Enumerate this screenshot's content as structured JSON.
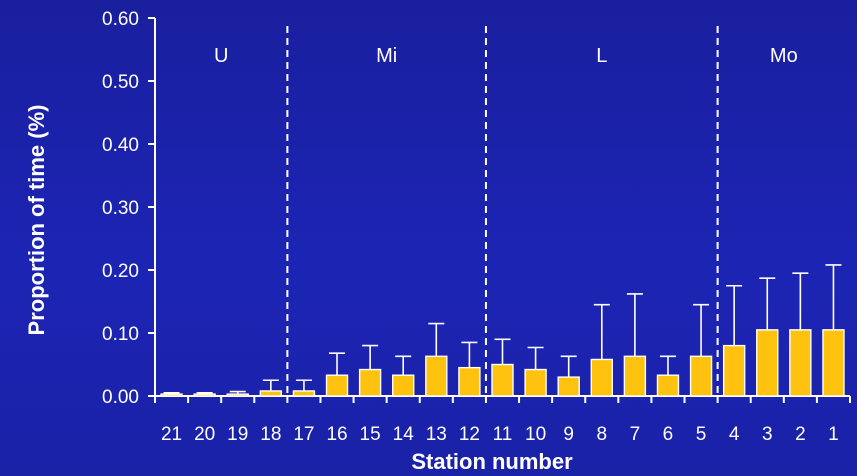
{
  "chart_data": {
    "type": "bar",
    "xlabel": "Station number",
    "ylabel": "Proportion of time (%)",
    "ylim": [
      0,
      0.6
    ],
    "yticks": [
      "0.00",
      "0.10",
      "0.20",
      "0.30",
      "0.40",
      "0.50",
      "0.60"
    ],
    "categories": [
      "21",
      "20",
      "19",
      "18",
      "17",
      "16",
      "15",
      "14",
      "13",
      "12",
      "11",
      "10",
      "9",
      "8",
      "7",
      "6",
      "5",
      "4",
      "3",
      "2",
      "1"
    ],
    "values": [
      0.003,
      0.003,
      0.003,
      0.008,
      0.008,
      0.033,
      0.042,
      0.033,
      0.063,
      0.045,
      0.05,
      0.042,
      0.03,
      0.058,
      0.063,
      0.033,
      0.063,
      0.08,
      0.105,
      0.105,
      0.105
    ],
    "errors_upper": [
      0.005,
      0.005,
      0.007,
      0.025,
      0.025,
      0.068,
      0.08,
      0.063,
      0.115,
      0.085,
      0.09,
      0.077,
      0.063,
      0.145,
      0.162,
      0.063,
      0.145,
      0.175,
      0.187,
      0.195,
      0.208
    ],
    "regions": [
      {
        "label": "U",
        "from": 0,
        "to": 3
      },
      {
        "label": "Mi",
        "from": 4,
        "to": 9
      },
      {
        "label": "L",
        "from": 10,
        "to": 16
      },
      {
        "label": "Mo",
        "from": 17,
        "to": 20
      }
    ],
    "grid": false,
    "bar_color": "#ffc20e",
    "text_color": "#ffffff"
  }
}
